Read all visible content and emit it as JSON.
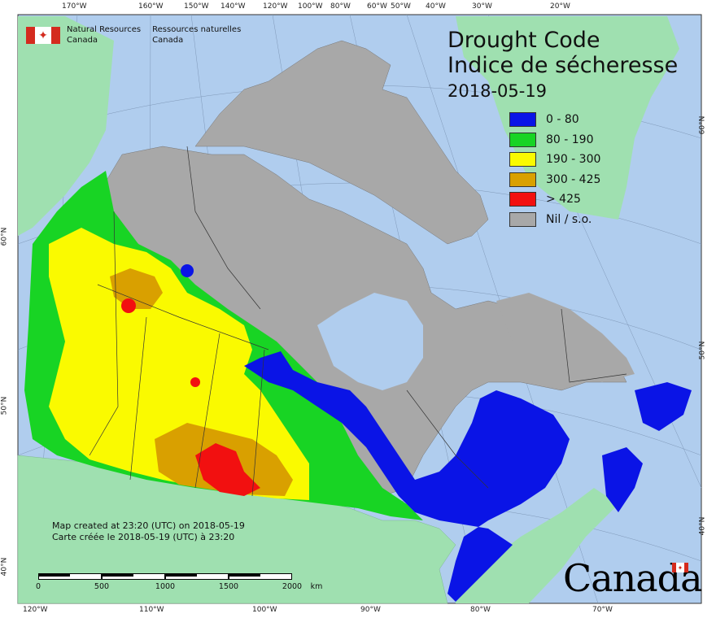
{
  "agency": {
    "en_line1": "Natural Resources",
    "en_line2": "Canada",
    "fr_line1": "Ressources naturelles",
    "fr_line2": "Canada"
  },
  "title": {
    "line1": "Drought Code",
    "line2": "Indice de sécheresse",
    "date": "2018-05-19"
  },
  "legend": [
    {
      "label": "0 - 80",
      "color": "#0a14e6"
    },
    {
      "label": "80 - 190",
      "color": "#18d424"
    },
    {
      "label": "190 - 300",
      "color": "#fafa00"
    },
    {
      "label": "300 - 425",
      "color": "#d9a000"
    },
    {
      "label": "> 425",
      "color": "#f21010"
    },
    {
      "label": "Nil / s.o.",
      "color": "#a8a8a8"
    }
  ],
  "created": {
    "en": "Map created at 23:20 (UTC) on 2018-05-19",
    "fr": "Carte créée le 2018-05-19 (UTC) à 23:20"
  },
  "scale": {
    "labels": [
      "0",
      "500",
      "1000",
      "1500",
      "2000"
    ],
    "unit": "km"
  },
  "wordmark": "Canada",
  "graticule": {
    "top": [
      "170°W",
      "160°W",
      "150°W",
      "140°W",
      "120°W",
      "100°W",
      "80°W",
      "60°W",
      "50°W",
      "40°W",
      "30°W",
      "20°W"
    ],
    "bottom": [
      "120°W",
      "110°W",
      "100°W",
      "90°W",
      "80°W",
      "70°W"
    ],
    "left": [
      "60°N",
      "50°N",
      "40°N"
    ],
    "right": [
      "60°N",
      "50°N",
      "40°N"
    ]
  },
  "colors": {
    "ocean": "#b0cdee",
    "land_other": "#9fe0b0",
    "nil": "#a8a8a8"
  }
}
